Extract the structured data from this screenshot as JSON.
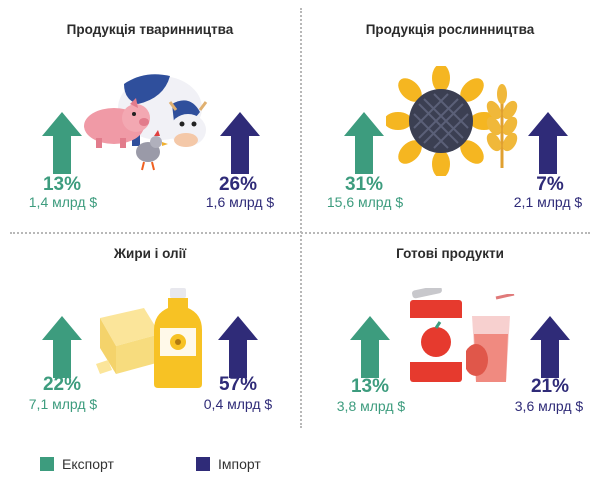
{
  "panels": [
    {
      "title": "Продукція тваринництва",
      "export": {
        "pct": "13%",
        "amount": "1,4 млрд $"
      },
      "import": {
        "pct": "26%",
        "amount": "1,6 млрд $"
      }
    },
    {
      "title": "Продукція рослинництва",
      "export": {
        "pct": "31%",
        "amount": "15,6 млрд $"
      },
      "import": {
        "pct": "7%",
        "amount": "2,1 млрд $"
      }
    },
    {
      "title": "Жири і олії",
      "export": {
        "pct": "22%",
        "amount": "7,1 млрд $"
      },
      "import": {
        "pct": "57%",
        "amount": "0,4 млрд $"
      }
    },
    {
      "title": "Готові продукти",
      "export": {
        "pct": "13%",
        "amount": "3,8 млрд $"
      },
      "import": {
        "pct": "21%",
        "amount": "3,6 млрд $"
      }
    }
  ],
  "legend": {
    "export_label": "Експорт",
    "import_label": "Імпорт"
  },
  "colors": {
    "export": "#3d9c7e",
    "import": "#2f2b78"
  },
  "icons": [
    "animals-icon",
    "sunflower-icon",
    "wheat-icon",
    "butter-icon",
    "oil-bottle-icon",
    "canned-food-icon",
    "juice-icon"
  ]
}
